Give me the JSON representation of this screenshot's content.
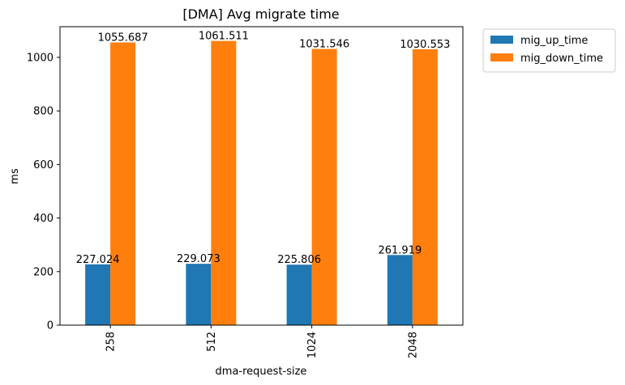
{
  "chart_data": {
    "type": "bar",
    "title": "[DMA] Avg migrate time",
    "xlabel": "dma-request-size",
    "ylabel": "ms",
    "categories": [
      "258",
      "512",
      "1024",
      "2048"
    ],
    "series": [
      {
        "name": "mig_up_time",
        "color": "#1f77b4",
        "values": [
          227.024,
          229.073,
          225.806,
          261.919
        ]
      },
      {
        "name": "mig_down_time",
        "color": "#ff7f0e",
        "values": [
          1055.687,
          1061.511,
          1031.546,
          1030.553
        ]
      }
    ],
    "data_labels": [
      [
        "227.024",
        "229.073",
        "225.806",
        "261.919"
      ],
      [
        "1055.687",
        "1061.511",
        "1031.546",
        "1030.553"
      ]
    ],
    "ylim": [
      0,
      1114.6
    ],
    "yticks": [
      0,
      200,
      400,
      600,
      800,
      1000
    ],
    "ytick_labels": [
      "0",
      "200",
      "400",
      "600",
      "800",
      "1000"
    ],
    "grid": false,
    "legend_placement": "outside-top-right"
  }
}
